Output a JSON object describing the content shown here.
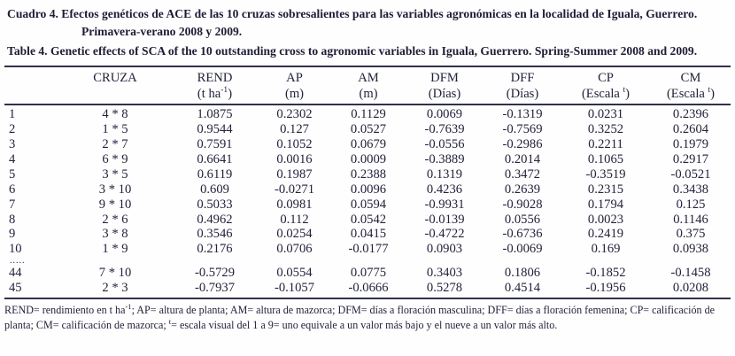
{
  "captions": {
    "es": "Cuadro 4. Efectos genéticos de ACE de las 10 cruzas sobresalientes para las variables agronómicas en la localidad de Iguala, Guerrero. Primavera-verano 2008 y 2009.",
    "en": "Table 4. Genetic effects of SCA of the 10 outstanding cross to agronomic variables in Iguala, Guerrero. Spring-Summer 2008 and 2009."
  },
  "table": {
    "columns": [
      {
        "key": "idx",
        "label": ""
      },
      {
        "key": "cruza",
        "label": "CRUZA"
      },
      {
        "key": "rend",
        "label": "REND",
        "unit_pre": "(t ha",
        "unit_sup": "-1",
        "unit_post": ")"
      },
      {
        "key": "ap",
        "label": "AP",
        "unit_pre": "(m)",
        "unit_sup": "",
        "unit_post": ""
      },
      {
        "key": "am",
        "label": "AM",
        "unit_pre": "(m)",
        "unit_sup": "",
        "unit_post": ""
      },
      {
        "key": "dfm",
        "label": "DFM",
        "unit_pre": "(Días)",
        "unit_sup": "",
        "unit_post": ""
      },
      {
        "key": "dff",
        "label": "DFF",
        "unit_pre": "(Días)",
        "unit_sup": "",
        "unit_post": ""
      },
      {
        "key": "cp",
        "label": "CP",
        "unit_pre": "(Escala ",
        "unit_sup": "t",
        "unit_post": ")"
      },
      {
        "key": "cm",
        "label": "CM",
        "unit_pre": "(Escala ",
        "unit_sup": "t",
        "unit_post": ")"
      }
    ],
    "rows": [
      {
        "n": "1",
        "cruza": "4 * 8",
        "values": [
          "1.0875",
          "0.2302",
          "0.1129",
          "0.0069",
          "-0.1319",
          "0.0231",
          "0.2396"
        ]
      },
      {
        "n": "2",
        "cruza": "1 * 5",
        "values": [
          "0.9544",
          "0.127",
          "0.0527",
          "-0.7639",
          "-0.7569",
          "0.3252",
          "0.2604"
        ]
      },
      {
        "n": "3",
        "cruza": "2 * 7",
        "values": [
          "0.7591",
          "0.1052",
          "0.0679",
          "-0.0556",
          "-0.2986",
          "0.2211",
          "0.1979"
        ]
      },
      {
        "n": "4",
        "cruza": "6 * 9",
        "values": [
          "0.6641",
          "0.0016",
          "0.0009",
          "-0.3889",
          "0.2014",
          "0.1065",
          "0.2917"
        ]
      },
      {
        "n": "5",
        "cruza": "3 * 5",
        "values": [
          "0.6119",
          "0.1987",
          "0.2388",
          "0.1319",
          "0.3472",
          "-0.3519",
          "-0.0521"
        ]
      },
      {
        "n": "6",
        "cruza": "3 * 10",
        "values": [
          "0.609",
          "-0.0271",
          "0.0096",
          "0.4236",
          "0.2639",
          "0.2315",
          "0.3438"
        ]
      },
      {
        "n": "7",
        "cruza": "9 * 10",
        "values": [
          "0.5033",
          "0.0981",
          "0.0594",
          "-0.9931",
          "-0.9028",
          "0.1794",
          "0.125"
        ]
      },
      {
        "n": "8",
        "cruza": "2 * 6",
        "values": [
          "0.4962",
          "0.112",
          "0.0542",
          "-0.0139",
          "0.0556",
          "0.0023",
          "0.1146"
        ]
      },
      {
        "n": "9",
        "cruza": "3 * 8",
        "values": [
          "0.3546",
          "0.0254",
          "0.0415",
          "-0.4722",
          "-0.6736",
          "0.2419",
          "0.375"
        ]
      },
      {
        "n": "10",
        "cruza": "1 * 9",
        "values": [
          "0.2176",
          "0.0706",
          "-0.0177",
          "0.0903",
          "-0.0069",
          "0.169",
          "0.0938"
        ]
      },
      {
        "n": ".....",
        "cruza": "",
        "values": [
          "",
          "",
          "",
          "",
          "",
          "",
          ""
        ],
        "ellipsis": true
      },
      {
        "n": "44",
        "cruza": "7 * 10",
        "values": [
          "-0.5729",
          "0.0554",
          "0.0775",
          "0.3403",
          "0.1806",
          "-0.1852",
          "-0.1458"
        ]
      },
      {
        "n": "45",
        "cruza": "2 * 3",
        "values": [
          "-0.7937",
          "-0.1057",
          "-0.0666",
          "0.5278",
          "0.4514",
          "-0.1956",
          "0.0208"
        ]
      }
    ]
  },
  "footnote": {
    "seg1": "REND= rendimiento en t ha",
    "sup1": "-1",
    "seg2": "; AP= altura de planta; AM= altura de mazorca; DFM= días a floración masculina; DFF= días a floración femenina; CP= calificación de planta; CM= calificación de mazorca; ",
    "sup2": "t",
    "seg3": "= escala visual del 1 a 9= uno equivale a un valor más bajo y el nueve a un valor más alto."
  }
}
